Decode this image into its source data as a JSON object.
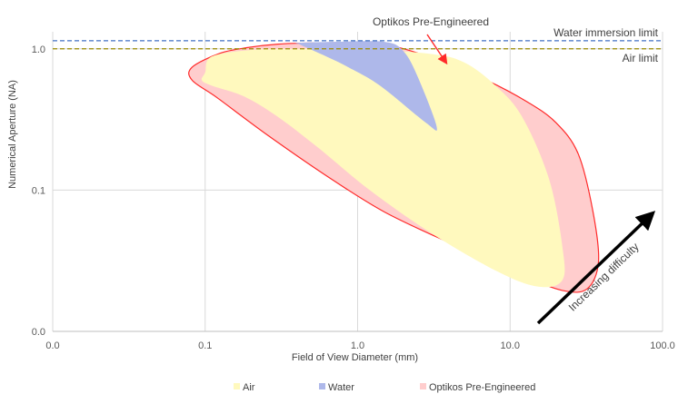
{
  "chart_data": {
    "type": "area",
    "title": "",
    "xlabel": "Field of View Diameter (mm)",
    "ylabel": "Numerical Aperture (NA)",
    "x_scale": "log",
    "y_scale": "log",
    "xlim": [
      0.01,
      100
    ],
    "ylim": [
      0.01,
      1.32
    ],
    "x_ticks": [
      {
        "value": 0.01,
        "label": "0.0"
      },
      {
        "value": 0.1,
        "label": "0.1"
      },
      {
        "value": 1,
        "label": "1.0"
      },
      {
        "value": 10,
        "label": "10.0"
      },
      {
        "value": 100,
        "label": "100.0"
      }
    ],
    "y_ticks": [
      {
        "value": 0.01,
        "label": "0.0"
      },
      {
        "value": 0.1,
        "label": "0.1"
      },
      {
        "value": 1,
        "label": "1.0"
      }
    ],
    "grid": true,
    "reference_lines": [
      {
        "name": "water_immersion",
        "label": "Water immersion limit",
        "value": 1.14,
        "color": "#4472c4",
        "style": "dashed"
      },
      {
        "name": "air",
        "label": "Air limit",
        "value": 1.0,
        "color": "#9b8b00",
        "style": "dashed"
      }
    ],
    "series": [
      {
        "name": "Optikos Pre-Engineered",
        "fill": "#ffcdcd",
        "stroke": "#ff2a2a",
        "points": [
          [
            0.125,
            0.93
          ],
          [
            0.19,
            1.02
          ],
          [
            0.3,
            1.08
          ],
          [
            0.5,
            1.1
          ],
          [
            1.0,
            1.1
          ],
          [
            1.8,
            1.03
          ],
          [
            3.5,
            0.82
          ],
          [
            7.0,
            0.6
          ],
          [
            13.0,
            0.42
          ],
          [
            20.0,
            0.3
          ],
          [
            28.0,
            0.18
          ],
          [
            35.0,
            0.07
          ],
          [
            38.0,
            0.031
          ],
          [
            32.0,
            0.02
          ],
          [
            22.0,
            0.0195
          ],
          [
            12.0,
            0.025
          ],
          [
            4.5,
            0.04
          ],
          [
            1.5,
            0.07
          ],
          [
            0.6,
            0.13
          ],
          [
            0.25,
            0.25
          ],
          [
            0.12,
            0.45
          ],
          [
            0.082,
            0.6
          ],
          [
            0.082,
            0.74
          ]
        ]
      },
      {
        "name": "Air",
        "fill": "#fff9be",
        "points": [
          [
            0.1,
            0.68
          ],
          [
            0.11,
            0.88
          ],
          [
            0.2,
            0.98
          ],
          [
            0.5,
            1.0
          ],
          [
            1.0,
            1.0
          ],
          [
            3.0,
            0.92
          ],
          [
            5.0,
            0.8
          ],
          [
            8.0,
            0.55
          ],
          [
            12.0,
            0.33
          ],
          [
            18.0,
            0.12
          ],
          [
            22.0,
            0.04
          ],
          [
            22.0,
            0.023
          ],
          [
            15.0,
            0.0208
          ],
          [
            8.0,
            0.027
          ],
          [
            3.0,
            0.05
          ],
          [
            1.2,
            0.1
          ],
          [
            0.55,
            0.2
          ],
          [
            0.3,
            0.33
          ],
          [
            0.18,
            0.46
          ],
          [
            0.11,
            0.55
          ],
          [
            0.095,
            0.6
          ]
        ]
      },
      {
        "name": "Water",
        "fill": "#aeb8ea",
        "points": [
          [
            0.4,
            1.1
          ],
          [
            0.7,
            1.12
          ],
          [
            1.5,
            1.12
          ],
          [
            2.0,
            0.96
          ],
          [
            2.5,
            0.62
          ],
          [
            3.3,
            0.28
          ],
          [
            2.8,
            0.3
          ],
          [
            1.4,
            0.55
          ],
          [
            0.85,
            0.75
          ],
          [
            0.6,
            0.9
          ],
          [
            0.42,
            1.07
          ]
        ]
      }
    ],
    "annotations": [
      {
        "name": "optikos-label",
        "text": "Optikos Pre-Engineered",
        "arrow_to": [
          3.8,
          0.8
        ]
      },
      {
        "name": "difficulty",
        "text": "Increasing difficulty"
      }
    ],
    "legend": {
      "position": "bottom",
      "entries": [
        "Air",
        "Water",
        "Optikos Pre-Engineered"
      ]
    }
  }
}
